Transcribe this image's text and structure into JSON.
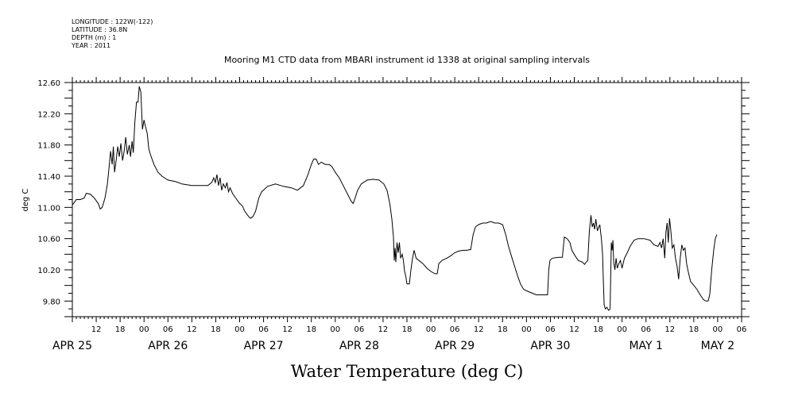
{
  "header_info": [
    "LONGITUDE : 122W(-122)",
    "LATITUDE : 36.8N",
    "DEPTH (m) : 1",
    "YEAR : 2011"
  ],
  "chart_data": {
    "type": "line",
    "title": "Mooring M1 CTD data from MBARI instrument id 1338 at original sampling intervals",
    "xlabel": "Water Temperature (deg C)",
    "ylabel": "deg C",
    "x_unit": "hours since APR 25 00:00 2011",
    "xlim": [
      6,
      174
    ],
    "ylim": [
      9.6,
      12.6
    ],
    "yticks": [
      "12.60",
      "12.20",
      "11.80",
      "11.40",
      "11.00",
      "10.60",
      "10.20",
      "9.80"
    ],
    "ytick_values": [
      12.6,
      12.2,
      11.8,
      11.4,
      11.0,
      10.6,
      10.2,
      9.8
    ],
    "hour_ticks": [
      {
        "h": 12,
        "label": "12"
      },
      {
        "h": 18,
        "label": "18"
      },
      {
        "h": 24,
        "label": "00"
      },
      {
        "h": 30,
        "label": "06"
      },
      {
        "h": 36,
        "label": "12"
      },
      {
        "h": 42,
        "label": "18"
      },
      {
        "h": 48,
        "label": "00"
      },
      {
        "h": 54,
        "label": "06"
      },
      {
        "h": 60,
        "label": "12"
      },
      {
        "h": 66,
        "label": "18"
      },
      {
        "h": 72,
        "label": "00"
      },
      {
        "h": 78,
        "label": "06"
      },
      {
        "h": 84,
        "label": "12"
      },
      {
        "h": 90,
        "label": "18"
      },
      {
        "h": 96,
        "label": "00"
      },
      {
        "h": 102,
        "label": "06"
      },
      {
        "h": 108,
        "label": "12"
      },
      {
        "h": 114,
        "label": "18"
      },
      {
        "h": 120,
        "label": "00"
      },
      {
        "h": 126,
        "label": "06"
      },
      {
        "h": 132,
        "label": "12"
      },
      {
        "h": 138,
        "label": "18"
      },
      {
        "h": 144,
        "label": "00"
      },
      {
        "h": 150,
        "label": "06"
      },
      {
        "h": 156,
        "label": "12"
      },
      {
        "h": 162,
        "label": "18"
      },
      {
        "h": 168,
        "label": "00"
      },
      {
        "h": 174,
        "label": "06"
      }
    ],
    "date_labels": [
      {
        "h": 6,
        "label": "APR 25"
      },
      {
        "h": 30,
        "label": "APR 26"
      },
      {
        "h": 54,
        "label": "APR 27"
      },
      {
        "h": 78,
        "label": "APR 28"
      },
      {
        "h": 102,
        "label": "APR 29"
      },
      {
        "h": 126,
        "label": "APR 30"
      },
      {
        "h": 150,
        "label": "MAY  1"
      },
      {
        "h": 168,
        "label": "MAY  2"
      }
    ],
    "series": [
      {
        "points": [
          [
            6,
            11.03
          ],
          [
            7,
            11.1
          ],
          [
            8,
            11.1
          ],
          [
            9,
            11.12
          ],
          [
            9.5,
            11.18
          ],
          [
            10.5,
            11.17
          ],
          [
            11.5,
            11.12
          ],
          [
            12.5,
            11.05
          ],
          [
            13,
            10.98
          ],
          [
            13.5,
            11.0
          ],
          [
            14.2,
            11.12
          ],
          [
            14.8,
            11.3
          ],
          [
            15.2,
            11.5
          ],
          [
            15.6,
            11.72
          ],
          [
            16,
            11.55
          ],
          [
            16.3,
            11.78
          ],
          [
            16.6,
            11.45
          ],
          [
            17,
            11.6
          ],
          [
            17.4,
            11.78
          ],
          [
            17.8,
            11.65
          ],
          [
            18.2,
            11.82
          ],
          [
            18.6,
            11.6
          ],
          [
            19,
            11.72
          ],
          [
            19.4,
            11.9
          ],
          [
            19.8,
            11.68
          ],
          [
            20.3,
            11.8
          ],
          [
            20.6,
            11.65
          ],
          [
            21,
            11.85
          ],
          [
            21.3,
            11.7
          ],
          [
            21.7,
            12.1
          ],
          [
            22.1,
            12.35
          ],
          [
            22.5,
            12.35
          ],
          [
            22.8,
            12.55
          ],
          [
            23.2,
            12.48
          ],
          [
            23.6,
            12.0
          ],
          [
            24,
            12.12
          ],
          [
            24.3,
            12.05
          ],
          [
            24.8,
            11.95
          ],
          [
            25.2,
            11.75
          ],
          [
            25.6,
            11.68
          ],
          [
            26.5,
            11.55
          ],
          [
            27.5,
            11.45
          ],
          [
            28.5,
            11.4
          ],
          [
            30,
            11.35
          ],
          [
            32,
            11.33
          ],
          [
            33.5,
            11.3
          ],
          [
            36,
            11.28
          ],
          [
            38,
            11.28
          ],
          [
            40,
            11.28
          ],
          [
            41,
            11.32
          ],
          [
            41.5,
            11.38
          ],
          [
            41.9,
            11.32
          ],
          [
            42.3,
            11.42
          ],
          [
            42.7,
            11.28
          ],
          [
            43.1,
            11.38
          ],
          [
            43.5,
            11.22
          ],
          [
            43.9,
            11.3
          ],
          [
            44.4,
            11.25
          ],
          [
            44.8,
            11.32
          ],
          [
            45.2,
            11.2
          ],
          [
            45.6,
            11.25
          ],
          [
            46.2,
            11.18
          ],
          [
            47,
            11.12
          ],
          [
            48,
            11.05
          ],
          [
            48.7,
            11.02
          ],
          [
            49.3,
            10.95
          ],
          [
            50,
            10.9
          ],
          [
            50.7,
            10.86
          ],
          [
            51.3,
            10.88
          ],
          [
            52,
            10.95
          ],
          [
            52.8,
            11.12
          ],
          [
            53.5,
            11.2
          ],
          [
            55,
            11.27
          ],
          [
            57,
            11.3
          ],
          [
            59,
            11.27
          ],
          [
            61,
            11.25
          ],
          [
            62.5,
            11.22
          ],
          [
            64,
            11.28
          ],
          [
            65,
            11.4
          ],
          [
            66,
            11.55
          ],
          [
            66.6,
            11.62
          ],
          [
            67.2,
            11.62
          ],
          [
            67.8,
            11.55
          ],
          [
            68.5,
            11.58
          ],
          [
            69.5,
            11.55
          ],
          [
            70.5,
            11.55
          ],
          [
            71.2,
            11.52
          ],
          [
            72,
            11.45
          ],
          [
            73,
            11.38
          ],
          [
            74,
            11.28
          ],
          [
            75,
            11.18
          ],
          [
            76,
            11.08
          ],
          [
            76.5,
            11.05
          ],
          [
            77,
            11.12
          ],
          [
            77.6,
            11.22
          ],
          [
            78.5,
            11.3
          ],
          [
            80,
            11.35
          ],
          [
            81.5,
            11.36
          ],
          [
            83,
            11.35
          ],
          [
            84.2,
            11.3
          ],
          [
            85,
            11.22
          ],
          [
            85.7,
            11.05
          ],
          [
            86.2,
            10.85
          ],
          [
            86.6,
            10.62
          ],
          [
            86.8,
            10.32
          ],
          [
            87,
            10.48
          ],
          [
            87.2,
            10.3
          ],
          [
            87.5,
            10.55
          ],
          [
            87.8,
            10.42
          ],
          [
            88.1,
            10.55
          ],
          [
            88.4,
            10.35
          ],
          [
            88.8,
            10.4
          ],
          [
            89.1,
            10.32
          ],
          [
            89.4,
            10.18
          ],
          [
            89.7,
            10.12
          ],
          [
            90,
            10.02
          ],
          [
            90.6,
            10.02
          ],
          [
            91,
            10.2
          ],
          [
            91.4,
            10.35
          ],
          [
            91.8,
            10.45
          ],
          [
            92.3,
            10.35
          ],
          [
            93,
            10.32
          ],
          [
            94,
            10.28
          ],
          [
            95,
            10.22
          ],
          [
            96,
            10.18
          ],
          [
            97,
            10.15
          ],
          [
            97.6,
            10.15
          ],
          [
            98,
            10.28
          ],
          [
            98.8,
            10.32
          ],
          [
            100,
            10.35
          ],
          [
            101,
            10.38
          ],
          [
            102,
            10.42
          ],
          [
            103,
            10.44
          ],
          [
            104,
            10.45
          ],
          [
            105,
            10.45
          ],
          [
            106,
            10.46
          ],
          [
            106.6,
            10.65
          ],
          [
            107.2,
            10.75
          ],
          [
            108,
            10.78
          ],
          [
            109,
            10.8
          ],
          [
            110,
            10.8
          ],
          [
            111,
            10.82
          ],
          [
            112,
            10.8
          ],
          [
            113,
            10.8
          ],
          [
            114,
            10.78
          ],
          [
            114.8,
            10.65
          ],
          [
            115.5,
            10.5
          ],
          [
            116.2,
            10.38
          ],
          [
            117,
            10.25
          ],
          [
            117.8,
            10.12
          ],
          [
            118.5,
            10.02
          ],
          [
            119.3,
            9.95
          ],
          [
            120.5,
            9.92
          ],
          [
            121.5,
            9.9
          ],
          [
            122.5,
            9.88
          ],
          [
            124,
            9.88
          ],
          [
            125.3,
            9.88
          ],
          [
            125.6,
            10.2
          ],
          [
            125.9,
            10.32
          ],
          [
            126.5,
            10.35
          ],
          [
            128,
            10.36
          ],
          [
            129,
            10.36
          ],
          [
            129.5,
            10.62
          ],
          [
            130.2,
            10.6
          ],
          [
            130.9,
            10.55
          ],
          [
            131.4,
            10.45
          ],
          [
            132.2,
            10.38
          ],
          [
            133,
            10.32
          ],
          [
            134,
            10.3
          ],
          [
            134.6,
            10.27
          ],
          [
            135,
            10.3
          ],
          [
            135.4,
            10.32
          ],
          [
            135.8,
            10.7
          ],
          [
            136.2,
            10.9
          ],
          [
            136.5,
            10.75
          ],
          [
            136.8,
            10.8
          ],
          [
            137.1,
            10.72
          ],
          [
            137.4,
            10.85
          ],
          [
            137.8,
            10.7
          ],
          [
            138.4,
            10.78
          ],
          [
            138.8,
            10.6
          ],
          [
            139.1,
            10.4
          ],
          [
            139.3,
            10.05
          ],
          [
            139.5,
            9.75
          ],
          [
            139.8,
            9.7
          ],
          [
            140.2,
            9.72
          ],
          [
            140.6,
            9.68
          ],
          [
            141,
            9.7
          ],
          [
            141.3,
            10.55
          ],
          [
            141.5,
            10.45
          ],
          [
            141.7,
            10.58
          ],
          [
            141.9,
            10.3
          ],
          [
            142.2,
            10.2
          ],
          [
            142.5,
            10.35
          ],
          [
            142.8,
            10.22
          ],
          [
            143.2,
            10.28
          ],
          [
            143.6,
            10.32
          ],
          [
            144,
            10.22
          ],
          [
            144.6,
            10.35
          ],
          [
            145.3,
            10.42
          ],
          [
            146,
            10.5
          ],
          [
            147,
            10.58
          ],
          [
            148,
            10.6
          ],
          [
            149.5,
            10.6
          ],
          [
            151,
            10.58
          ],
          [
            152,
            10.52
          ],
          [
            153,
            10.5
          ],
          [
            153.5,
            10.55
          ],
          [
            153.9,
            10.48
          ],
          [
            154.3,
            10.6
          ],
          [
            154.7,
            10.35
          ],
          [
            155,
            10.68
          ],
          [
            155.3,
            10.8
          ],
          [
            155.6,
            10.55
          ],
          [
            155.9,
            10.86
          ],
          [
            156.2,
            10.72
          ],
          [
            156.6,
            10.48
          ],
          [
            157,
            10.52
          ],
          [
            157.4,
            10.35
          ],
          [
            157.8,
            10.25
          ],
          [
            158.2,
            10.08
          ],
          [
            158.6,
            10.35
          ],
          [
            159,
            10.52
          ],
          [
            159.4,
            10.45
          ],
          [
            159.8,
            10.48
          ],
          [
            160.2,
            10.28
          ],
          [
            160.6,
            10.18
          ],
          [
            161.2,
            10.05
          ],
          [
            162,
            10.0
          ],
          [
            162.8,
            9.95
          ],
          [
            163.6,
            9.88
          ],
          [
            164.4,
            9.82
          ],
          [
            165,
            9.8
          ],
          [
            165.6,
            9.8
          ],
          [
            166,
            9.88
          ],
          [
            166.5,
            10.2
          ],
          [
            167,
            10.45
          ],
          [
            167.4,
            10.6
          ],
          [
            167.8,
            10.65
          ]
        ]
      }
    ]
  }
}
